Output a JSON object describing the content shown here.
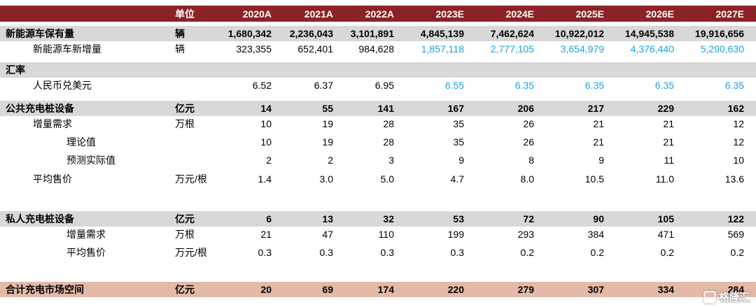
{
  "header": {
    "unit_label": "单位",
    "years": [
      "2020A",
      "2021A",
      "2022A",
      "2023E",
      "2024E",
      "2025E",
      "2026E",
      "2027E"
    ]
  },
  "colors": {
    "header_bg": "#8b2226",
    "section_bg": "#d8d8d8",
    "total_bg": "#e3b9a8",
    "forecast_blue": "#1ba3df"
  },
  "rows": [
    {
      "label": "新能源车保有量",
      "unit": "辆",
      "values": [
        "1,680,342",
        "2,236,043",
        "3,101,891",
        "4,845,139",
        "7,462,624",
        "10,922,012",
        "14,945,538",
        "19,916,656"
      ]
    },
    {
      "label": "新能源车新增量",
      "unit": "辆",
      "values": [
        "323,355",
        "652,401",
        "984,628",
        "1,857,118",
        "2,777,105",
        "3,654,979",
        "4,376,440",
        "5,290,630"
      ]
    },
    {
      "label": "汇率",
      "unit": "",
      "values": []
    },
    {
      "label": "人民币兑美元",
      "unit": "",
      "values": [
        "6.52",
        "6.37",
        "6.95",
        "6.55",
        "6.35",
        "6.35",
        "6.35",
        "6.35"
      ]
    },
    {
      "label": "公共充电桩设备",
      "unit": "亿元",
      "values": [
        "14",
        "55",
        "141",
        "167",
        "206",
        "217",
        "229",
        "162"
      ]
    },
    {
      "label": "增量需求",
      "unit": "万根",
      "values": [
        "10",
        "19",
        "28",
        "35",
        "26",
        "21",
        "21",
        "12"
      ]
    },
    {
      "label": "理论值",
      "unit": "",
      "values": [
        "10",
        "19",
        "28",
        "35",
        "26",
        "21",
        "21",
        "12"
      ]
    },
    {
      "label": "预测实际值",
      "unit": "",
      "values": [
        "2",
        "2",
        "3",
        "9",
        "8",
        "9",
        "11",
        "10"
      ]
    },
    {
      "label": "平均售价",
      "unit": "万元/根",
      "values": [
        "1.4",
        "3.0",
        "5.0",
        "4.7",
        "8.0",
        "10.5",
        "11.0",
        "13.6"
      ]
    },
    {
      "label": "私人充电桩设备",
      "unit": "亿元",
      "values": [
        "6",
        "13",
        "32",
        "53",
        "72",
        "90",
        "105",
        "122"
      ]
    },
    {
      "label": "增量需求",
      "unit": "万根",
      "values": [
        "21",
        "47",
        "110",
        "199",
        "293",
        "384",
        "471",
        "569"
      ]
    },
    {
      "label": "平均售价",
      "unit": "万元/根",
      "values": [
        "0.3",
        "0.3",
        "0.3",
        "0.3",
        "0.2",
        "0.2",
        "0.2",
        "0.2"
      ]
    },
    {
      "label": "合计充电市场空间",
      "unit": "亿元",
      "values": [
        "20",
        "69",
        "174",
        "220",
        "279",
        "307",
        "334",
        "284"
      ]
    }
  ],
  "watermark": "格隆汇"
}
